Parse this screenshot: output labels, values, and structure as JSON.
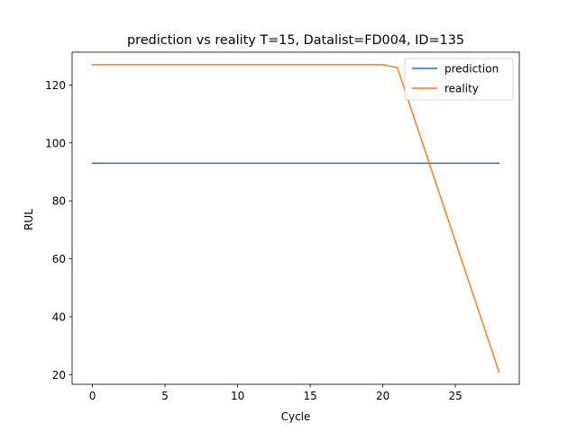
{
  "chart_data": {
    "type": "line",
    "title": "prediction vs reality T=15, Datalist=FD004, ID=135",
    "xlabel": "Cycle",
    "ylabel": "RUL",
    "xlim": [
      -1.4,
      29.4
    ],
    "ylim": [
      16.7,
      131.3
    ],
    "xticks": [
      0,
      5,
      10,
      15,
      20,
      25
    ],
    "yticks": [
      20,
      40,
      60,
      80,
      100,
      120
    ],
    "grid": false,
    "legend_position": "top-right",
    "series": [
      {
        "name": "prediction",
        "color": "#1f77b4",
        "x": [
          0,
          28
        ],
        "y": [
          93,
          93
        ]
      },
      {
        "name": "reality",
        "color": "#ff7f0e",
        "x": [
          0,
          20,
          21,
          22,
          23,
          24,
          25,
          26,
          27,
          28
        ],
        "y": [
          127,
          127,
          126,
          111,
          96,
          81,
          66,
          51,
          36,
          21
        ]
      }
    ]
  }
}
